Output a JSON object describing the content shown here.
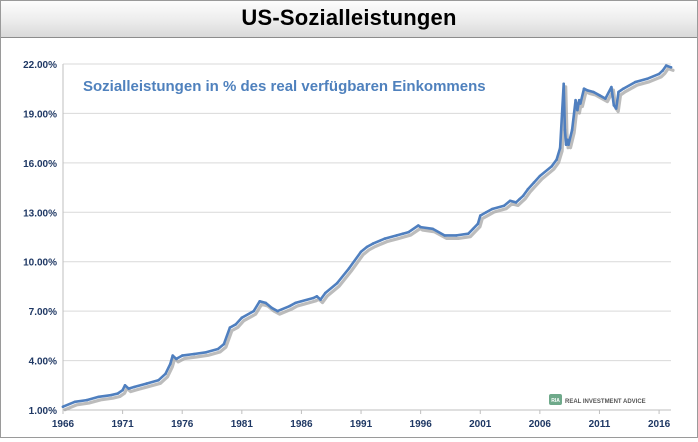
{
  "header": {
    "title": "US-Sozialleistungen"
  },
  "watermark": {
    "badge": "RIA",
    "text": "REAL INVESTMENT ADVICE"
  },
  "colors": {
    "line": "#4f7fbf",
    "shadow": "#a6a6a6",
    "axis_text": "#1f3864",
    "grid": "#d9d9d9",
    "annotation": "#4f81bd"
  },
  "chart_data": {
    "type": "line",
    "title": "Sozialleistungen in % des real verfügbaren Einkommens",
    "xlabel": "",
    "ylabel": "",
    "xlim": [
      1966,
      2017
    ],
    "ylim": [
      1.0,
      22.0
    ],
    "x_ticks": [
      1966,
      1971,
      1976,
      1981,
      1986,
      1991,
      1996,
      2001,
      2006,
      2011,
      2016
    ],
    "y_ticks": [
      1.0,
      4.0,
      7.0,
      10.0,
      13.0,
      16.0,
      19.0,
      22.0
    ],
    "x_tick_labels": [
      "1966",
      "1971",
      "1976",
      "1981",
      "1986",
      "1991",
      "1996",
      "2001",
      "2006",
      "2011",
      "2016"
    ],
    "y_tick_labels": [
      "1.00%",
      "4.00%",
      "7.00%",
      "10.00%",
      "13.00%",
      "16.00%",
      "19.00%",
      "22.00%"
    ],
    "grid": true,
    "series": [
      {
        "name": "Sozialleistungen in % des real verfügbaren Einkommens",
        "x": [
          1966,
          1967,
          1968,
          1969,
          1970,
          1970.6,
          1971,
          1971.2,
          1971.5,
          1972,
          1973,
          1974,
          1974.6,
          1975,
          1975.2,
          1975.5,
          1976,
          1977,
          1978,
          1979,
          1979.5,
          1980,
          1980.5,
          1981,
          1982,
          1982.5,
          1983,
          1983.5,
          1984,
          1985,
          1985.5,
          1986,
          1987,
          1987.3,
          1987.6,
          1988,
          1989,
          1990,
          1991,
          1991.5,
          1992,
          1993,
          1994,
          1994.5,
          1995,
          1995.8,
          1996,
          1997,
          1998,
          1999,
          2000,
          2000.4,
          2000.8,
          2001,
          2001.5,
          2002,
          2003,
          2003.5,
          2004,
          2004.3,
          2004.6,
          2005,
          2005.5,
          2006,
          2007,
          2007.4,
          2007.7,
          2008,
          2008.1,
          2008.2,
          2008.3,
          2008.4,
          2008.7,
          2009,
          2009.15,
          2009.3,
          2009.4,
          2009.7,
          2010,
          2010.5,
          2011,
          2011.5,
          2012,
          2012.2,
          2012.4,
          2012.6,
          2013,
          2014,
          2015,
          2016,
          2016.3,
          2016.6,
          2017
        ],
        "values": [
          1.2,
          1.5,
          1.6,
          1.8,
          1.9,
          2.0,
          2.2,
          2.5,
          2.3,
          2.4,
          2.6,
          2.8,
          3.2,
          3.8,
          4.3,
          4.1,
          4.3,
          4.4,
          4.5,
          4.7,
          5.0,
          6.0,
          6.2,
          6.6,
          7.0,
          7.6,
          7.5,
          7.2,
          7.0,
          7.3,
          7.5,
          7.6,
          7.8,
          7.9,
          7.7,
          8.1,
          8.7,
          9.6,
          10.6,
          10.9,
          11.1,
          11.4,
          11.6,
          11.7,
          11.8,
          12.2,
          12.1,
          12.0,
          11.6,
          11.6,
          11.7,
          12.0,
          12.3,
          12.8,
          13.0,
          13.2,
          13.4,
          13.7,
          13.6,
          13.8,
          14.0,
          14.4,
          14.8,
          15.2,
          15.8,
          16.2,
          16.9,
          20.8,
          18.0,
          17.1,
          17.4,
          17.1,
          18.0,
          19.8,
          19.2,
          19.8,
          19.6,
          20.5,
          20.4,
          20.3,
          20.1,
          19.9,
          20.6,
          19.5,
          19.3,
          20.3,
          20.5,
          20.9,
          21.1,
          21.4,
          21.6,
          21.9,
          21.8
        ]
      }
    ]
  }
}
